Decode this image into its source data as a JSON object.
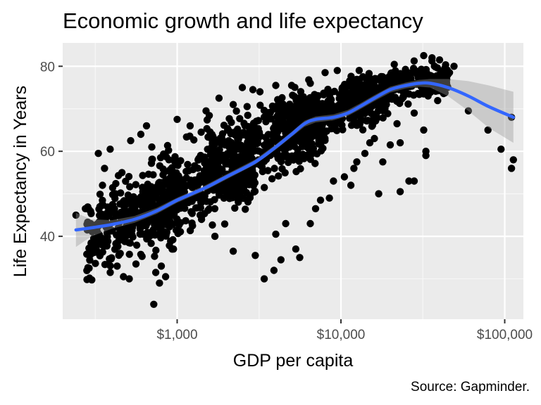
{
  "chart_data": {
    "type": "scatter",
    "title": "Economic growth and life expectancy",
    "xlabel": "GDP per capita",
    "ylabel": "Life Expectancy in Years",
    "caption": "Source: Gapminder.",
    "x_scale": "log10",
    "xlim": [
      200,
      130000
    ],
    "ylim": [
      20.5,
      85.5
    ],
    "x_ticks": [
      {
        "value": 1000,
        "label": "$1,000"
      },
      {
        "value": 10000,
        "label": "$10,000"
      },
      {
        "value": 100000,
        "label": "$100,000"
      }
    ],
    "y_ticks": [
      {
        "value": 40,
        "label": "40"
      },
      {
        "value": 60,
        "label": "60"
      },
      {
        "value": 80,
        "label": "80"
      }
    ],
    "grid": true,
    "colors": {
      "panel": "#ebebeb",
      "grid_major": "#ffffff",
      "points": "#000000",
      "smooth_line": "#3366ff",
      "confidence_band": "#999999"
    },
    "smooth": {
      "method": "loess",
      "se": true,
      "points": [
        {
          "x": 241,
          "y": 41.5,
          "lo": 37.5,
          "hi": 45.5
        },
        {
          "x": 300,
          "y": 42.0,
          "lo": 40.0,
          "hi": 44.0
        },
        {
          "x": 400,
          "y": 42.8,
          "lo": 41.8,
          "hi": 43.8
        },
        {
          "x": 550,
          "y": 44.0,
          "lo": 43.2,
          "hi": 44.8
        },
        {
          "x": 750,
          "y": 46.0,
          "lo": 45.3,
          "hi": 46.7
        },
        {
          "x": 1000,
          "y": 48.5,
          "lo": 47.9,
          "hi": 49.1
        },
        {
          "x": 1500,
          "y": 51.5,
          "lo": 50.9,
          "hi": 52.1
        },
        {
          "x": 2000,
          "y": 54.0,
          "lo": 53.4,
          "hi": 54.6
        },
        {
          "x": 3000,
          "y": 57.5,
          "lo": 56.9,
          "hi": 58.1
        },
        {
          "x": 4000,
          "y": 61.0,
          "lo": 60.4,
          "hi": 61.6
        },
        {
          "x": 5000,
          "y": 64.0,
          "lo": 63.4,
          "hi": 64.6
        },
        {
          "x": 6000,
          "y": 66.5,
          "lo": 65.8,
          "hi": 67.2
        },
        {
          "x": 7000,
          "y": 67.5,
          "lo": 66.8,
          "hi": 68.2
        },
        {
          "x": 9000,
          "y": 68.0,
          "lo": 67.3,
          "hi": 68.7
        },
        {
          "x": 11000,
          "y": 69.0,
          "lo": 68.3,
          "hi": 69.7
        },
        {
          "x": 13000,
          "y": 70.5,
          "lo": 69.8,
          "hi": 71.2
        },
        {
          "x": 16000,
          "y": 72.5,
          "lo": 71.8,
          "hi": 73.2
        },
        {
          "x": 20000,
          "y": 74.5,
          "lo": 73.8,
          "hi": 75.2
        },
        {
          "x": 25000,
          "y": 75.5,
          "lo": 74.8,
          "hi": 76.2
        },
        {
          "x": 30000,
          "y": 76.0,
          "lo": 75.2,
          "hi": 76.8
        },
        {
          "x": 35000,
          "y": 76.0,
          "lo": 75.0,
          "hi": 77.0
        },
        {
          "x": 45000,
          "y": 75.0,
          "lo": 73.0,
          "hi": 77.0
        },
        {
          "x": 60000,
          "y": 73.0,
          "lo": 69.5,
          "hi": 76.5
        },
        {
          "x": 80000,
          "y": 70.5,
          "lo": 65.5,
          "hi": 75.5
        },
        {
          "x": 113000,
          "y": 68.0,
          "lo": 62.0,
          "hi": 74.0
        }
      ]
    },
    "points": [
      {
        "x": 241,
        "y": 45.0
      },
      {
        "x": 275,
        "y": 46.5
      },
      {
        "x": 290,
        "y": 32.5
      },
      {
        "x": 330,
        "y": 59.5
      },
      {
        "x": 390,
        "y": 60.5
      },
      {
        "x": 360,
        "y": 56.0
      },
      {
        "x": 350,
        "y": 52.0
      },
      {
        "x": 420,
        "y": 50.0
      },
      {
        "x": 460,
        "y": 55.0
      },
      {
        "x": 520,
        "y": 62.5
      },
      {
        "x": 600,
        "y": 64.0
      },
      {
        "x": 700,
        "y": 61.0
      },
      {
        "x": 650,
        "y": 66.0
      },
      {
        "x": 340,
        "y": 36.0
      },
      {
        "x": 380,
        "y": 33.5
      },
      {
        "x": 430,
        "y": 33.0
      },
      {
        "x": 470,
        "y": 30.5
      },
      {
        "x": 510,
        "y": 30.0
      },
      {
        "x": 560,
        "y": 33.5
      },
      {
        "x": 740,
        "y": 31.5
      },
      {
        "x": 780,
        "y": 29.0
      },
      {
        "x": 720,
        "y": 24.0
      },
      {
        "x": 800,
        "y": 33.0
      },
      {
        "x": 850,
        "y": 30.5
      },
      {
        "x": 950,
        "y": 37.0
      },
      {
        "x": 1000,
        "y": 67.5
      },
      {
        "x": 1200,
        "y": 66.0
      },
      {
        "x": 1500,
        "y": 69.5
      },
      {
        "x": 1800,
        "y": 72.5
      },
      {
        "x": 2200,
        "y": 71.0
      },
      {
        "x": 2900,
        "y": 74.5
      },
      {
        "x": 3200,
        "y": 74.0
      },
      {
        "x": 1700,
        "y": 40.0
      },
      {
        "x": 2200,
        "y": 36.5
      },
      {
        "x": 3000,
        "y": 35.5
      },
      {
        "x": 3400,
        "y": 30.0
      },
      {
        "x": 3900,
        "y": 32.0
      },
      {
        "x": 4300,
        "y": 34.5
      },
      {
        "x": 5300,
        "y": 37.0
      },
      {
        "x": 5600,
        "y": 35.0
      },
      {
        "x": 4000,
        "y": 40.5
      },
      {
        "x": 4600,
        "y": 43.0
      },
      {
        "x": 6500,
        "y": 43.0
      },
      {
        "x": 7000,
        "y": 46.5
      },
      {
        "x": 7500,
        "y": 48.5
      },
      {
        "x": 8500,
        "y": 49.0
      },
      {
        "x": 9000,
        "y": 53.0
      },
      {
        "x": 10500,
        "y": 54.0
      },
      {
        "x": 11500,
        "y": 52.0
      },
      {
        "x": 12000,
        "y": 56.0
      },
      {
        "x": 12500,
        "y": 57.5
      },
      {
        "x": 14000,
        "y": 59.5
      },
      {
        "x": 15000,
        "y": 62.0
      },
      {
        "x": 16000,
        "y": 63.0
      },
      {
        "x": 17000,
        "y": 50.0
      },
      {
        "x": 18000,
        "y": 57.5
      },
      {
        "x": 20000,
        "y": 61.5
      },
      {
        "x": 22000,
        "y": 66.5
      },
      {
        "x": 23000,
        "y": 62.0
      },
      {
        "x": 23000,
        "y": 50.5
      },
      {
        "x": 26000,
        "y": 53.0
      },
      {
        "x": 28000,
        "y": 53.0
      },
      {
        "x": 28000,
        "y": 69.0
      },
      {
        "x": 32000,
        "y": 65.0
      },
      {
        "x": 33000,
        "y": 59.0
      },
      {
        "x": 33000,
        "y": 60.0
      },
      {
        "x": 43000,
        "y": 79.5
      },
      {
        "x": 46000,
        "y": 78.5
      },
      {
        "x": 49000,
        "y": 80.0
      },
      {
        "x": 40000,
        "y": 81.5
      },
      {
        "x": 36000,
        "y": 82.0
      },
      {
        "x": 32000,
        "y": 82.5
      },
      {
        "x": 60000,
        "y": 69.5
      },
      {
        "x": 79000,
        "y": 65.0
      },
      {
        "x": 95000,
        "y": 60.5
      },
      {
        "x": 110000,
        "y": 56.0
      },
      {
        "x": 113000,
        "y": 58.0
      },
      {
        "x": 110000,
        "y": 68.0
      },
      {
        "x": 9500,
        "y": 79.0
      },
      {
        "x": 8000,
        "y": 78.5
      },
      {
        "x": 6500,
        "y": 76.0
      },
      {
        "x": 5000,
        "y": 75.5
      },
      {
        "x": 4000,
        "y": 75.5
      },
      {
        "x": 2500,
        "y": 75.0
      }
    ],
    "dense_clouds": [
      {
        "x_from": 280,
        "x_to": 1000,
        "y_center": 44,
        "y_spread": 8,
        "count": 320
      },
      {
        "x_from": 600,
        "x_to": 3000,
        "y_center": 52,
        "y_spread": 9,
        "count": 380
      },
      {
        "x_from": 1500,
        "x_to": 8000,
        "y_center": 62,
        "y_spread": 8,
        "count": 420
      },
      {
        "x_from": 4000,
        "x_to": 20000,
        "y_center": 70,
        "y_spread": 5,
        "count": 360
      },
      {
        "x_from": 10000,
        "x_to": 45000,
        "y_center": 75,
        "y_spread": 3.5,
        "count": 320
      }
    ]
  }
}
